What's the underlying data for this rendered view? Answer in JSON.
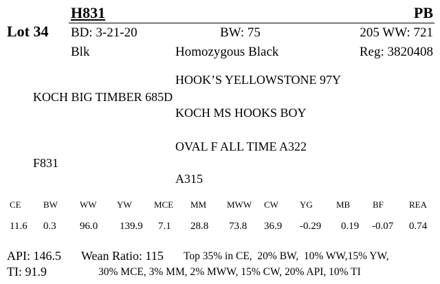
{
  "lot": "Lot 34",
  "header": {
    "name": "H831",
    "breed": "PB"
  },
  "info": {
    "bd": "BD: 3-21-20",
    "bw": "BW: 75",
    "ww": "205 WW: 721",
    "color": "Blk",
    "genotype": "Homozygous Black",
    "reg": "Reg: 3820408"
  },
  "pedigree": {
    "sire_sire": "HOOK’S YELLOWSTONE 97Y",
    "sire": "KOCH BIG TIMBER 685D",
    "sire_dam": "KOCH MS HOOKS BOY",
    "dam_sire": "OVAL F ALL TIME A322",
    "dam": "F831",
    "dam_dam": "A315"
  },
  "epd": {
    "headers": [
      "CE",
      "BW",
      "WW",
      "YW",
      "MCE",
      "MM",
      "MWW",
      "CW",
      "YG",
      "MB",
      "BF",
      "REA"
    ],
    "values": [
      "11.6",
      "0.3",
      "96.0",
      "139.9",
      "7.1",
      "28.8",
      "73.8",
      "36.9",
      "-0.29",
      "0.19",
      "-0.07",
      "0.74"
    ]
  },
  "indexes": {
    "api": "API: 146.5",
    "wean_ratio": "Wean Ratio: 115",
    "ti": "TI: 91.9",
    "rank_line1": "Top 35% in CE,  20% BW,  10% WW,15% YW,",
    "rank_line2": "30% MCE, 3% MM, 2% MWW, 15% CW, 20% API, 10% TI"
  }
}
